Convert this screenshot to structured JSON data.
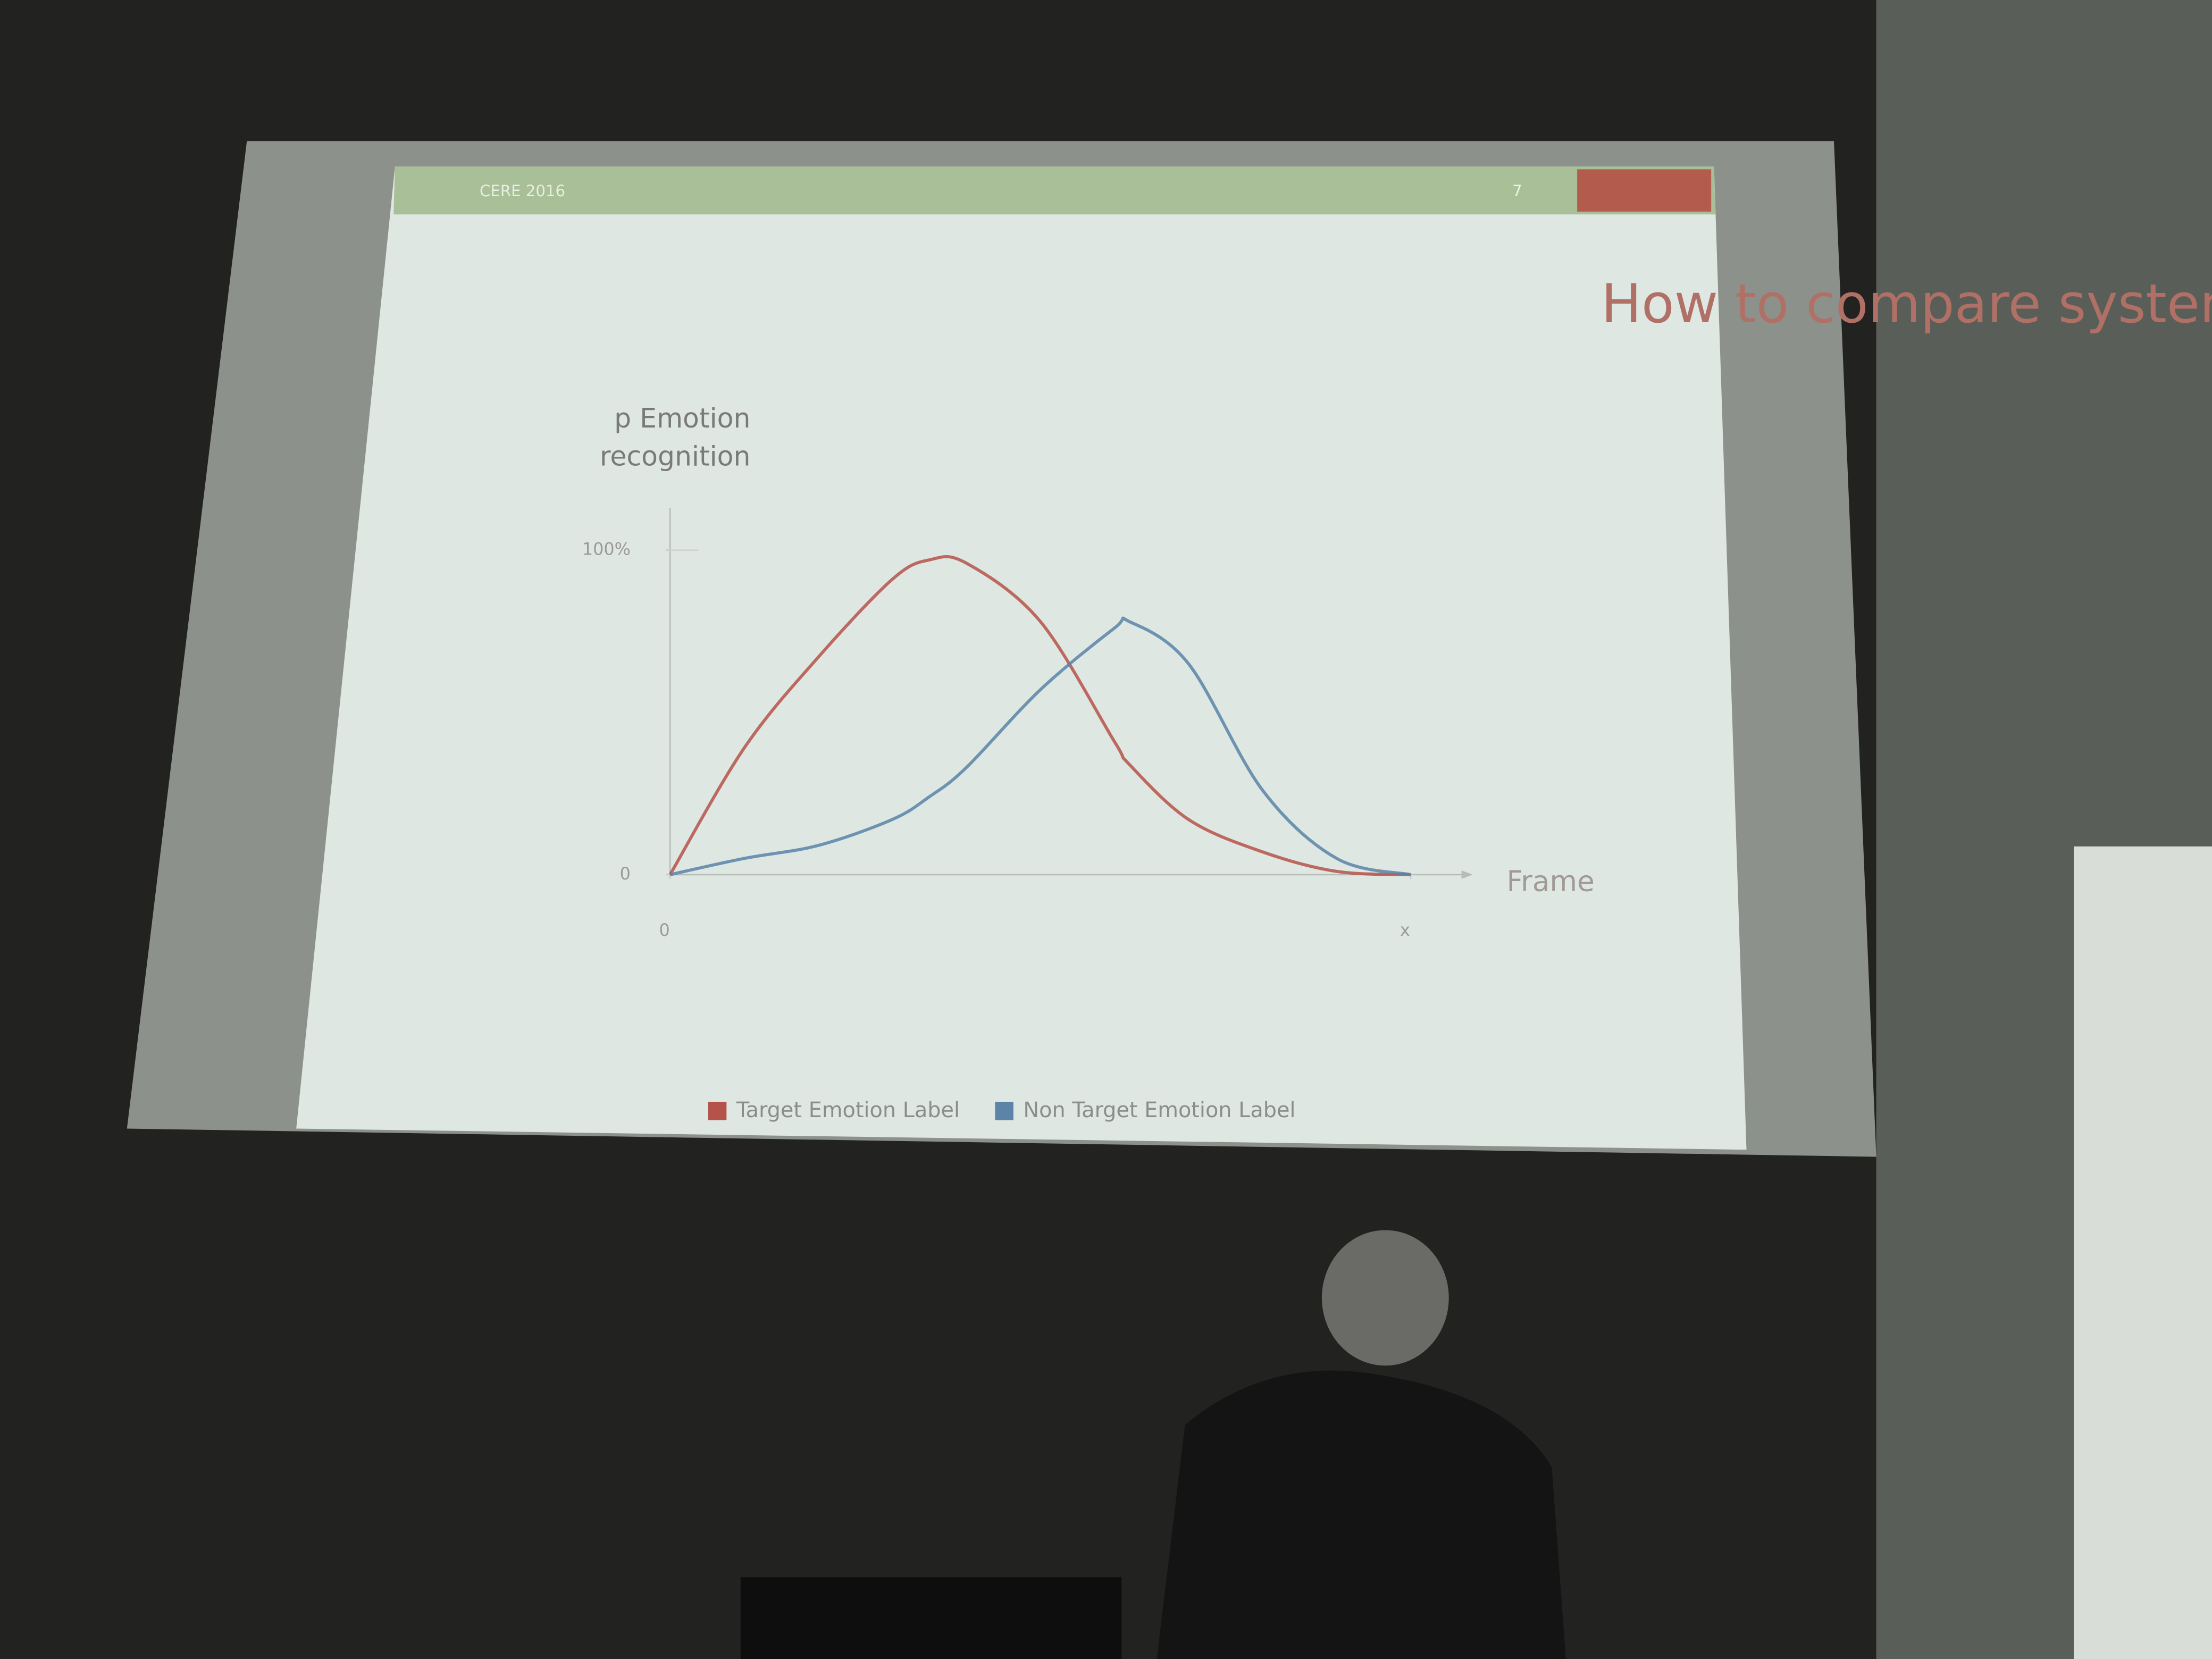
{
  "slide": {
    "footer_left": "CERE 2016",
    "page_number": "7"
  },
  "chart_data": {
    "type": "line",
    "title": "How to compare systems’ accuracy?",
    "ylabel": [
      "p Emotion",
      "recognition"
    ],
    "xlabel": "Frame",
    "x": [
      0,
      1,
      2,
      3,
      3.5,
      4,
      5,
      6,
      6.2,
      7,
      8,
      9,
      10
    ],
    "xlim": [
      0,
      10
    ],
    "xticks": [
      0,
      {
        "value": 10,
        "label": "x"
      }
    ],
    "ylim": [
      0,
      100
    ],
    "yticks": [
      0,
      {
        "value": 100,
        "label": "100%"
      }
    ],
    "series": [
      {
        "name": "Target Emotion Label",
        "color": "#b5524a",
        "values": [
          0,
          39,
          67,
          91,
          97,
          96,
          78,
          41,
          34,
          17,
          7,
          1,
          0
        ]
      },
      {
        "name": "Non Target Emotion Label",
        "color": "#5b84a8",
        "values": [
          0,
          5,
          9,
          17,
          24,
          33,
          57,
          76,
          78,
          65,
          26,
          5,
          0
        ]
      }
    ]
  }
}
